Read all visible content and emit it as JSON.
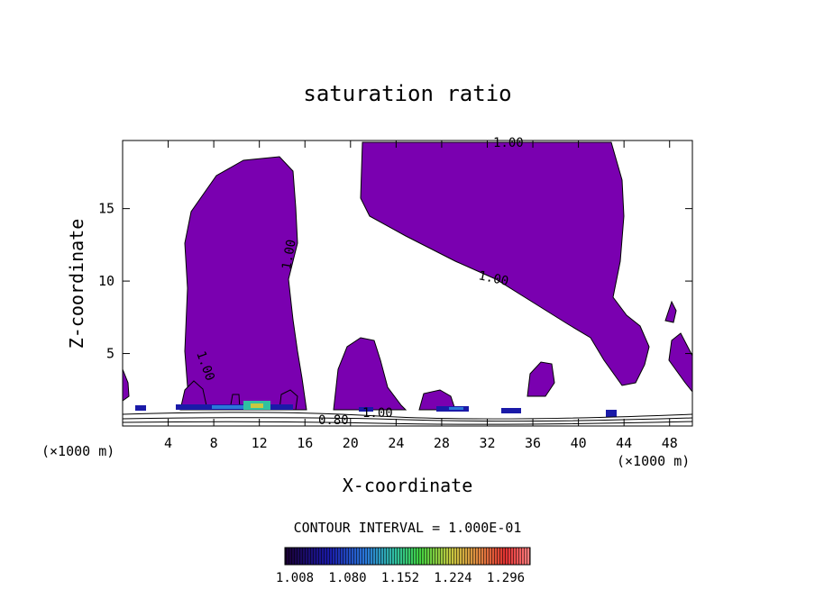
{
  "chart_data": {
    "type": "contour",
    "title": "saturation ratio",
    "xlabel": "X-coordinate",
    "ylabel": "Z-coordinate",
    "x_unit": "(×1000 m)",
    "x_ticks": [
      4,
      8,
      12,
      16,
      20,
      24,
      28,
      32,
      36,
      40,
      44,
      48
    ],
    "y_ticks": [
      5,
      10,
      15
    ],
    "xlim": [
      0,
      50
    ],
    "ylim": [
      0,
      19.7
    ],
    "contour_labels": [
      "1.00",
      "1.00",
      "1.00",
      "1.00",
      "1.00",
      "0.80"
    ],
    "fill_color": "#7a00b0",
    "contour_interval_text": "CONTOUR INTERVAL = 1.000E-01",
    "colorbar": {
      "labels": [
        "1.008",
        "1.080",
        "1.152",
        "1.224",
        "1.296"
      ],
      "colors": [
        "#1a0033",
        "#1a1aa8",
        "#2a78d8",
        "#30c0a0",
        "#40d040",
        "#c8c840",
        "#e08040",
        "#e03030",
        "#ff8080"
      ]
    }
  }
}
